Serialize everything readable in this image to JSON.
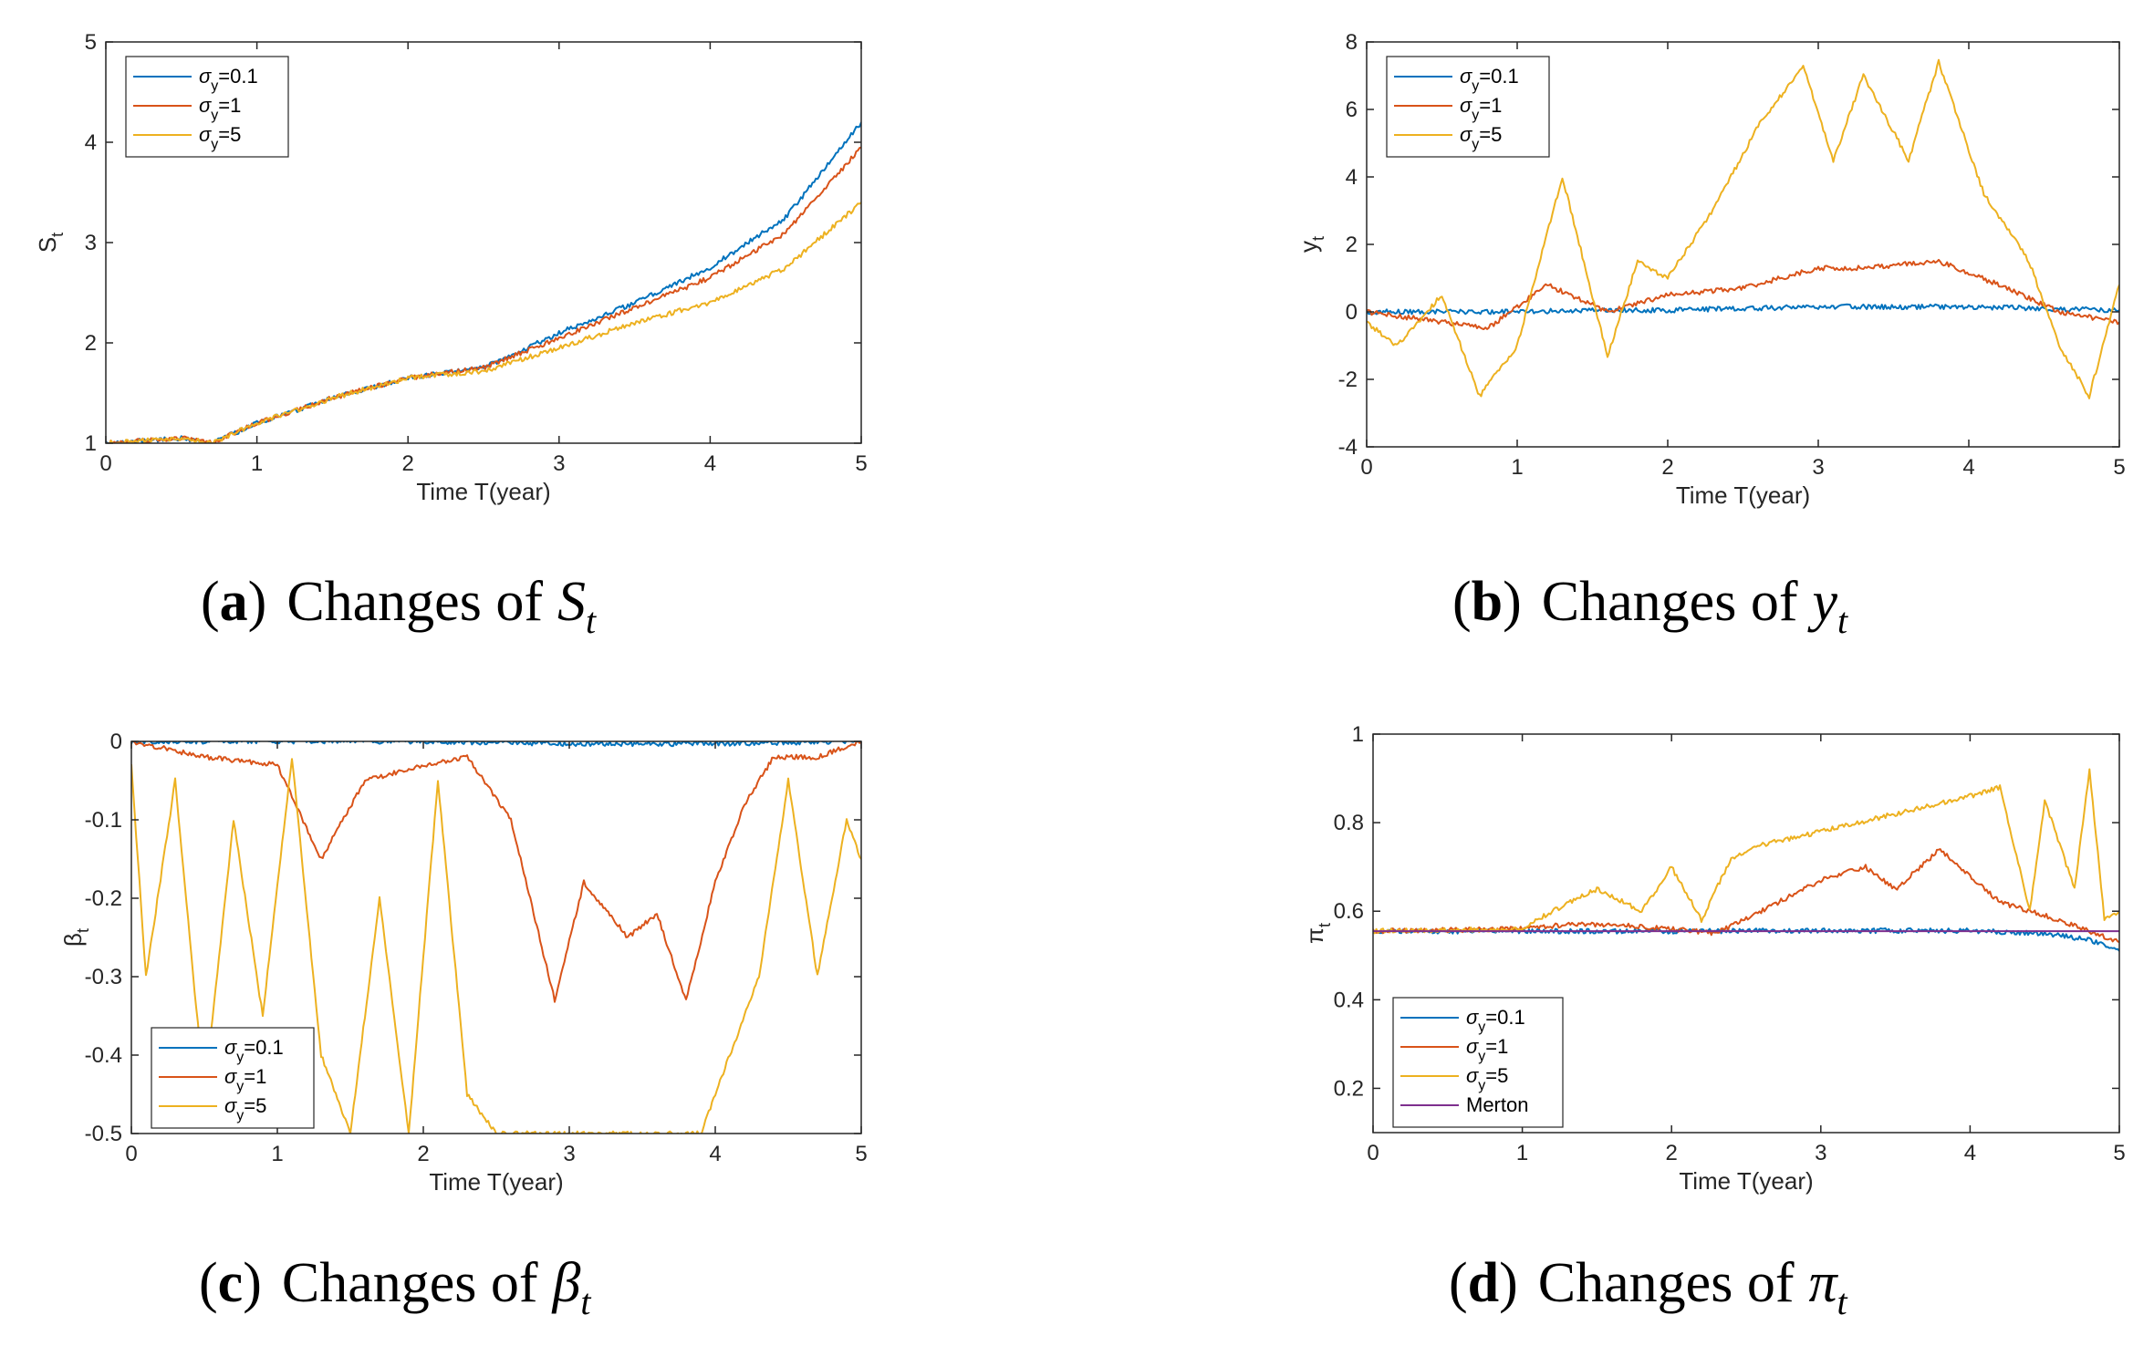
{
  "colors": {
    "sigma_0_1": "#0072BD",
    "sigma_1": "#D95319",
    "sigma_5": "#EDB120",
    "merton": "#7E2F8E",
    "axis": "#262626"
  },
  "chart_data": [
    {
      "id": "a",
      "type": "line",
      "caption": {
        "tag": "a",
        "text": "Changes of",
        "symbol": "S",
        "sub": "t"
      },
      "xlabel": "Time T(year)",
      "ylabel": "S",
      "ylabel_sub": "t",
      "xlim": [
        0,
        5
      ],
      "ylim": [
        1,
        5
      ],
      "xticks": [
        "0",
        "1",
        "2",
        "3",
        "4",
        "5"
      ],
      "yticks": [
        "1",
        "2",
        "3",
        "4",
        "5"
      ],
      "legend_position": "top-left",
      "legend": [
        {
          "greek": "σ",
          "sub": "y",
          "rest": "=0.1"
        },
        {
          "greek": "σ",
          "sub": "y",
          "rest": "=1"
        },
        {
          "greek": "σ",
          "sub": "y",
          "rest": "=5"
        }
      ],
      "series": [
        {
          "name": "σy=0.1",
          "color": "#0072BD",
          "x": [
            0,
            0.5,
            0.7,
            1.0,
            1.5,
            2.0,
            2.5,
            3.0,
            3.5,
            4.0,
            4.5,
            5.0
          ],
          "values": [
            1.0,
            1.05,
            1.0,
            1.2,
            1.45,
            1.65,
            1.75,
            2.1,
            2.4,
            2.75,
            3.25,
            4.2
          ]
        },
        {
          "name": "σy=1",
          "color": "#D95319",
          "x": [
            0,
            0.5,
            0.7,
            1.0,
            1.5,
            2.0,
            2.5,
            3.0,
            3.5,
            4.0,
            4.5,
            5.0
          ],
          "values": [
            1.0,
            1.05,
            1.0,
            1.2,
            1.45,
            1.65,
            1.75,
            2.05,
            2.35,
            2.65,
            3.1,
            3.95
          ]
        },
        {
          "name": "σy=5",
          "color": "#EDB120",
          "x": [
            0,
            0.5,
            0.7,
            1.0,
            1.5,
            2.0,
            2.5,
            3.0,
            3.5,
            4.0,
            4.5,
            5.0
          ],
          "values": [
            1.0,
            1.05,
            1.0,
            1.2,
            1.45,
            1.65,
            1.72,
            1.95,
            2.2,
            2.4,
            2.75,
            3.4
          ]
        }
      ]
    },
    {
      "id": "b",
      "type": "line",
      "caption": {
        "tag": "b",
        "text": "Changes of",
        "symbol": "y",
        "sub": "t"
      },
      "xlabel": "Time T(year)",
      "ylabel": "y",
      "ylabel_sub": "t",
      "xlim": [
        0,
        5
      ],
      "ylim": [
        -4,
        8
      ],
      "xticks": [
        "0",
        "1",
        "2",
        "3",
        "4",
        "5"
      ],
      "yticks": [
        "-4",
        "-2",
        "0",
        "2",
        "4",
        "6",
        "8"
      ],
      "legend_position": "top-left",
      "legend": [
        {
          "greek": "σ",
          "sub": "y",
          "rest": "=0.1"
        },
        {
          "greek": "σ",
          "sub": "y",
          "rest": "=1"
        },
        {
          "greek": "σ",
          "sub": "y",
          "rest": "=5"
        }
      ],
      "series": [
        {
          "name": "σy=0.1",
          "color": "#0072BD",
          "x": [
            0,
            0.5,
            1.0,
            1.5,
            2.0,
            2.5,
            3.0,
            3.5,
            4.0,
            4.5,
            5.0
          ],
          "values": [
            0,
            0,
            0,
            0.05,
            0.05,
            0.1,
            0.15,
            0.15,
            0.15,
            0.1,
            0.05
          ]
        },
        {
          "name": "σy=1",
          "color": "#D95319",
          "x": [
            0,
            0.5,
            0.8,
            1.2,
            1.6,
            2.0,
            2.5,
            3.0,
            3.3,
            3.8,
            4.2,
            4.6,
            5.0
          ],
          "values": [
            0,
            -0.3,
            -0.5,
            0.8,
            0,
            0.5,
            0.7,
            1.3,
            1.3,
            1.5,
            0.8,
            0,
            -0.3
          ]
        },
        {
          "name": "σy=5",
          "color": "#EDB120",
          "x": [
            0,
            0.2,
            0.5,
            0.75,
            1.0,
            1.3,
            1.6,
            1.8,
            2.0,
            2.3,
            2.6,
            2.9,
            3.1,
            3.3,
            3.6,
            3.8,
            4.1,
            4.4,
            4.6,
            4.8,
            5.0
          ],
          "values": [
            -0.3,
            -1.0,
            0.5,
            -2.5,
            -1.0,
            4.0,
            -1.3,
            1.5,
            1.0,
            3.0,
            5.5,
            7.3,
            4.5,
            7.0,
            4.5,
            7.4,
            3.5,
            1.5,
            -1.0,
            -2.5,
            0.8
          ]
        }
      ]
    },
    {
      "id": "c",
      "type": "line",
      "caption": {
        "tag": "c",
        "text": "Changes of",
        "symbol": "β",
        "sub": "t"
      },
      "xlabel": "Time T(year)",
      "ylabel": "β",
      "ylabel_sub": "t",
      "xlim": [
        0,
        5
      ],
      "ylim": [
        -0.5,
        0
      ],
      "xticks": [
        "0",
        "1",
        "2",
        "3",
        "4",
        "5"
      ],
      "yticks": [
        "-0.5",
        "-0.4",
        "-0.3",
        "-0.2",
        "-0.1",
        "0"
      ],
      "legend_position": "bottom-left",
      "legend": [
        {
          "greek": "σ",
          "sub": "y",
          "rest": "=0.1"
        },
        {
          "greek": "σ",
          "sub": "y",
          "rest": "=1"
        },
        {
          "greek": "σ",
          "sub": "y",
          "rest": "=5"
        }
      ],
      "series": [
        {
          "name": "σy=0.1",
          "color": "#0072BD",
          "x": [
            0,
            1,
            2,
            3,
            4,
            5
          ],
          "values": [
            0,
            0,
            0,
            -0.003,
            -0.003,
            0
          ]
        },
        {
          "name": "σy=1",
          "color": "#D95319",
          "x": [
            0,
            0.5,
            1.0,
            1.3,
            1.6,
            2.0,
            2.3,
            2.6,
            2.9,
            3.1,
            3.4,
            3.6,
            3.8,
            4.0,
            4.2,
            4.4,
            4.7,
            5.0
          ],
          "values": [
            0,
            -0.02,
            -0.03,
            -0.15,
            -0.05,
            -0.03,
            -0.02,
            -0.1,
            -0.33,
            -0.18,
            -0.25,
            -0.22,
            -0.33,
            -0.18,
            -0.08,
            -0.02,
            -0.02,
            0
          ]
        },
        {
          "name": "σy=5",
          "color": "#EDB120",
          "x": [
            0,
            0.1,
            0.3,
            0.5,
            0.7,
            0.9,
            1.1,
            1.3,
            1.5,
            1.7,
            1.9,
            2.1,
            2.3,
            2.5,
            2.8,
            3.2,
            3.6,
            3.9,
            4.1,
            4.3,
            4.5,
            4.7,
            4.9,
            5.0
          ],
          "values": [
            -0.03,
            -0.3,
            -0.05,
            -0.45,
            -0.1,
            -0.35,
            -0.02,
            -0.4,
            -0.5,
            -0.2,
            -0.5,
            -0.05,
            -0.45,
            -0.5,
            -0.5,
            -0.5,
            -0.5,
            -0.5,
            -0.4,
            -0.3,
            -0.05,
            -0.3,
            -0.1,
            -0.15
          ]
        }
      ]
    },
    {
      "id": "d",
      "type": "line",
      "caption": {
        "tag": "d",
        "text": "Changes of",
        "symbol": "π",
        "sub": "t"
      },
      "xlabel": "Time T(year)",
      "ylabel": "π",
      "ylabel_sub": "t",
      "xlim": [
        0,
        5
      ],
      "ylim": [
        0.1,
        1
      ],
      "xticks": [
        "0",
        "1",
        "2",
        "3",
        "4",
        "5"
      ],
      "yticks": [
        "0.2",
        "0.4",
        "0.6",
        "0.8",
        "1"
      ],
      "legend_position": "bottom-left",
      "legend": [
        {
          "greek": "σ",
          "sub": "y",
          "rest": "=0.1"
        },
        {
          "greek": "σ",
          "sub": "y",
          "rest": "=1"
        },
        {
          "greek": "σ",
          "sub": "y",
          "rest": "=5"
        },
        {
          "greek": "",
          "sub": "",
          "rest": "Merton"
        }
      ],
      "series": [
        {
          "name": "σy=0.1",
          "color": "#0072BD",
          "x": [
            0,
            1,
            2,
            3,
            4,
            4.5,
            4.8,
            5.0
          ],
          "values": [
            0.555,
            0.555,
            0.555,
            0.556,
            0.556,
            0.55,
            0.535,
            0.51
          ]
        },
        {
          "name": "σy=1",
          "color": "#D95319",
          "x": [
            0,
            1.0,
            1.3,
            1.6,
            2.0,
            2.3,
            2.6,
            3.0,
            3.3,
            3.5,
            3.8,
            4.2,
            4.6,
            5.0
          ],
          "values": [
            0.555,
            0.56,
            0.57,
            0.57,
            0.56,
            0.55,
            0.6,
            0.67,
            0.7,
            0.65,
            0.74,
            0.62,
            0.58,
            0.53
          ]
        },
        {
          "name": "σy=5",
          "color": "#EDB120",
          "x": [
            0,
            1.0,
            1.2,
            1.5,
            1.8,
            2.0,
            2.2,
            2.4,
            2.6,
            3.0,
            3.5,
            4.0,
            4.2,
            4.4,
            4.5,
            4.7,
            4.8,
            4.9,
            5.0
          ],
          "values": [
            0.555,
            0.56,
            0.6,
            0.65,
            0.6,
            0.7,
            0.58,
            0.72,
            0.75,
            0.78,
            0.82,
            0.86,
            0.88,
            0.6,
            0.85,
            0.65,
            0.92,
            0.58,
            0.6
          ]
        },
        {
          "name": "Merton",
          "color": "#7E2F8E",
          "x": [
            0,
            5
          ],
          "values": [
            0.555,
            0.555
          ]
        }
      ]
    }
  ]
}
